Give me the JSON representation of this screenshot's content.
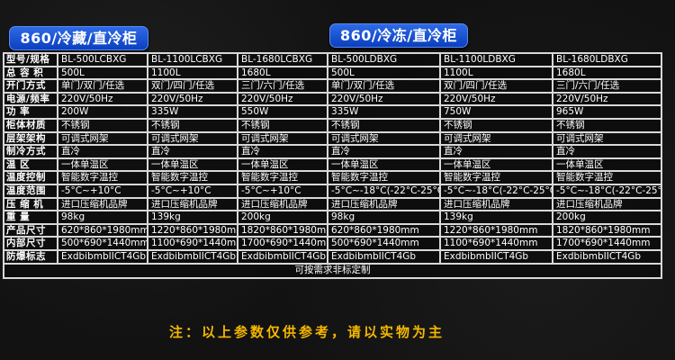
{
  "badges": {
    "left": "860/冷藏/直冷柜",
    "right": "860/冷冻/直冷柜"
  },
  "colors": {
    "badge": "#1a52d6",
    "note": "#f5b800",
    "background": "#121212"
  },
  "table": {
    "rows": [
      {
        "label": "型号/规格",
        "values": [
          "BL-500LCBXG",
          "BL-1100LCBXG",
          "BL-1680LCBXG",
          "BL-500LDBXG",
          "BL-1100LDBXG",
          "BL-1680LDBXG"
        ]
      },
      {
        "label": "总 容 积",
        "values": [
          "500L",
          "1100L",
          "1680L",
          "500L",
          "1100L",
          "1680L"
        ]
      },
      {
        "label": "开门方式",
        "values": [
          "单门/双门/任选",
          "双门/四门/任选",
          "三门/六门/任选",
          "单门/双门/任选",
          "双门/四门/任选",
          "三门/六门/任选"
        ]
      },
      {
        "label": "电源/频率",
        "values": [
          "220V/50Hz",
          "220V/50Hz",
          "220V/50Hz",
          "220V/50Hz",
          "220V/50Hz",
          "220V/50Hz"
        ]
      },
      {
        "label": "功  率",
        "values": [
          "200W",
          "335W",
          "550W",
          "335W",
          "750W",
          "965W"
        ]
      },
      {
        "label": "柜体材质",
        "values": [
          "不锈钢",
          "不锈钢",
          "不锈钢",
          "不锈钢",
          "不锈钢",
          "不锈钢"
        ]
      },
      {
        "label": "层架架构",
        "values": [
          "可调式网架",
          "可调式网架",
          "可调式网架",
          "可调式网架",
          "可调式网架",
          "可调式网架"
        ]
      },
      {
        "label": "制冷方式",
        "values": [
          "直冷",
          "直冷",
          "直冷",
          "直冷",
          "直冷",
          "直冷"
        ]
      },
      {
        "label": "温  区",
        "values": [
          "一体单温区",
          "一体单温区",
          "一体单温区",
          "一体单温区",
          "一体单温区",
          "一体单温区"
        ]
      },
      {
        "label": "温度控制",
        "values": [
          "智能数字温控",
          "智能数字温控",
          "智能数字温控",
          "智能数字温控",
          "智能数字温控",
          "智能数字温控"
        ]
      },
      {
        "label": "温度范围",
        "values": [
          "-5°C~+10°C",
          "-5°C~+10°C",
          "-5°C~+10°C",
          "-5°C~-18°C(-22°C-25°C)",
          "-5°C~-18°C(-22°C-25°C)",
          "-5°C~-18°C(-22°C-25°C)"
        ]
      },
      {
        "label": "压 缩 机",
        "values": [
          "进口压缩机品牌",
          "进口压缩机品牌",
          "进口压缩机品牌",
          "进口压缩机品牌",
          "进口压缩机品牌",
          "进口压缩机品牌"
        ]
      },
      {
        "label": "重  量",
        "values": [
          "98kg",
          "139kg",
          "200kg",
          "98kg",
          "139kg",
          "200kg"
        ]
      },
      {
        "label": "产品尺寸",
        "values": [
          "620*860*1980mm",
          "1220*860*1980mm",
          "1820*860*1980mm",
          "620*860*1980mm",
          "1220*860*1980mm",
          "1820*860*1980mm"
        ]
      },
      {
        "label": "内部尺寸",
        "values": [
          "500*690*1440mm",
          "1100*690*1440mm",
          "1700*690*1440mm",
          "500*690*1440mm",
          "1100*690*1440mm",
          "1700*690*1440mm"
        ]
      },
      {
        "label": "防爆标志",
        "values": [
          "ExdbibmbIICT4Gb",
          "ExdbibmbIICT4Gb",
          "ExdbibmbIICT4Gb",
          "ExdbibmbIICT4Gb",
          "ExdbibmbIICT4Gb",
          "ExdbibmbIICT4Gb"
        ]
      }
    ],
    "footer": "可按需求非标定制"
  },
  "note": "注：以上参数仅供参考，请以实物为主"
}
